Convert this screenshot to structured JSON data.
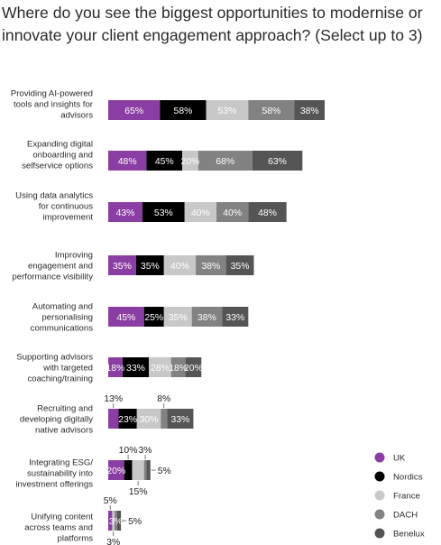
{
  "chart_data": {
    "type": "bar",
    "stacked": true,
    "orientation": "horizontal",
    "title": "Where do you see the biggest opportunities to modernise or innovate your client engagement approach? (Select up to 3)",
    "categories": [
      "Providing AI-powered tools and insights for advisors",
      "Expanding digital onboarding and selfservice options",
      "Using data analytics for continuous improvement",
      "Improving engagement and performance visibility",
      "Automating and personalising communications",
      "Supporting advisors with targeted coaching/training",
      "Recruiting and developing digitally native advisors",
      "Integrating ESG/ sustainability into investment offerings",
      "Unifying content across teams and platforms"
    ],
    "category_lines": [
      [
        "Providing AI-powered",
        "tools and insights for",
        "advisors"
      ],
      [
        "Expanding digital",
        "onboarding and",
        "selfservice options"
      ],
      [
        "Using data analytics",
        "for continuous",
        "improvement"
      ],
      [
        "Improving",
        "engagement and",
        "performance visibility"
      ],
      [
        "Automating and",
        "personalising",
        "communications"
      ],
      [
        "Supporting advisors",
        "with targeted",
        "coaching/training"
      ],
      [
        "Recruiting and",
        "developing digitally",
        "native advisors"
      ],
      [
        "Integrating ESG/",
        "sustainability into",
        "investment offerings"
      ],
      [
        "Unifying content",
        "across teams and",
        "platforms"
      ]
    ],
    "series": [
      {
        "name": "UK",
        "color": "#8a3ea3",
        "values": [
          65,
          48,
          43,
          35,
          45,
          18,
          13,
          20,
          5
        ]
      },
      {
        "name": "Nordics",
        "color": "#000000",
        "values": [
          58,
          45,
          53,
          35,
          25,
          33,
          23,
          10,
          0
        ]
      },
      {
        "name": "France",
        "color": "#c8c8c8",
        "values": [
          53,
          20,
          40,
          40,
          35,
          28,
          30,
          15,
          3
        ]
      },
      {
        "name": "DACH",
        "color": "#828282",
        "values": [
          58,
          68,
          40,
          38,
          38,
          18,
          8,
          3,
          3
        ]
      },
      {
        "name": "Benelux",
        "color": "#555555",
        "values": [
          38,
          63,
          48,
          35,
          33,
          20,
          33,
          5,
          5
        ]
      }
    ],
    "value_suffix": "%",
    "legend_position": "bottom-right",
    "grid": false
  }
}
